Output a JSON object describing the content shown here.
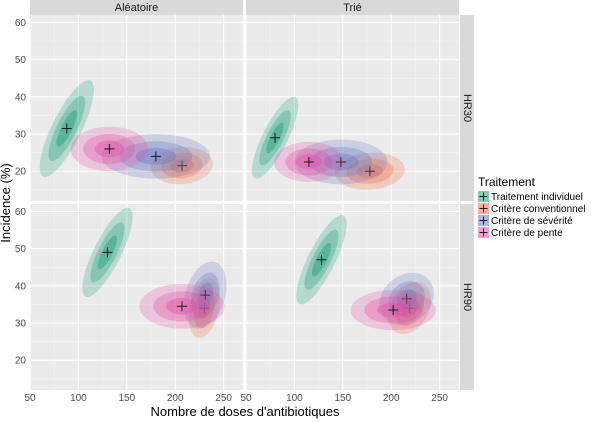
{
  "chart_data": {
    "type": "scatter",
    "subtype": "faceted 2D density with centroid markers",
    "xlabel": "Nombre de doses d'antibiotiques",
    "ylabel": "Incidence (%)",
    "xlim": [
      50,
      270
    ],
    "ylim": [
      12,
      62
    ],
    "x_ticks": [
      50,
      100,
      150,
      200,
      250
    ],
    "y_ticks": [
      20,
      30,
      40,
      50,
      60
    ],
    "grid": true,
    "facet_columns": [
      "Aléatoire",
      "Trié"
    ],
    "facet_rows": [
      "HR30",
      "HR90"
    ],
    "legend": {
      "title": "Traitement",
      "position": "right",
      "entries": [
        "Traitement individuel",
        "Critère conventionnel",
        "Critère de sévérité",
        "Critère de pente"
      ]
    },
    "series": [
      {
        "name": "Traitement individuel",
        "color": "#1b9e77",
        "points": [
          {
            "col": "Aléatoire",
            "row": "HR30",
            "x": 88,
            "y": 31.5,
            "sx": 14,
            "sy": 6.5,
            "rho": 0.8
          },
          {
            "col": "Trié",
            "row": "HR30",
            "x": 80,
            "y": 29,
            "sx": 12,
            "sy": 5.5,
            "rho": 0.8
          },
          {
            "col": "Aléatoire",
            "row": "HR90",
            "x": 130,
            "y": 49,
            "sx": 13,
            "sy": 6,
            "rho": 0.8
          },
          {
            "col": "Trié",
            "row": "HR90",
            "x": 128,
            "y": 47,
            "sx": 13,
            "sy": 6,
            "rho": 0.8
          }
        ]
      },
      {
        "name": "Critère conventionnel",
        "color": "#f46d43",
        "points": [
          {
            "col": "Aléatoire",
            "row": "HR30",
            "x": 207,
            "y": 21.5,
            "sx": 16,
            "sy": 2.5,
            "rho": 0.1
          },
          {
            "col": "Trié",
            "row": "HR30",
            "x": 178,
            "y": 20,
            "sx": 18,
            "sy": 2.5,
            "rho": 0.1
          },
          {
            "col": "Aléatoire",
            "row": "HR90",
            "x": 230,
            "y": 34,
            "sx": 8,
            "sy": 4,
            "rho": 0.3
          },
          {
            "col": "Trié",
            "row": "HR90",
            "x": 219,
            "y": 34,
            "sx": 11,
            "sy": 3.5,
            "rho": 0.3
          }
        ]
      },
      {
        "name": "Critère de sévérité",
        "color": "#6b79c4",
        "points": [
          {
            "col": "Aléatoire",
            "row": "HR30",
            "x": 180,
            "y": 24,
            "sx": 28,
            "sy": 3,
            "rho": 0
          },
          {
            "col": "Trié",
            "row": "HR30",
            "x": 148,
            "y": 22.5,
            "sx": 24,
            "sy": 3,
            "rho": 0
          },
          {
            "col": "Aléatoire",
            "row": "HR90",
            "x": 231,
            "y": 37.5,
            "sx": 11,
            "sy": 4.5,
            "rho": 0.3
          },
          {
            "col": "Trié",
            "row": "HR90",
            "x": 216,
            "y": 36.5,
            "sx": 14,
            "sy": 3.5,
            "rho": 0.2
          }
        ]
      },
      {
        "name": "Critère de pente",
        "color": "#e34fa6",
        "points": [
          {
            "col": "Aléatoire",
            "row": "HR30",
            "x": 132,
            "y": 26,
            "sx": 20,
            "sy": 3,
            "rho": 0
          },
          {
            "col": "Trié",
            "row": "HR30",
            "x": 115,
            "y": 22.5,
            "sx": 18,
            "sy": 2.7,
            "rho": 0
          },
          {
            "col": "Aléatoire",
            "row": "HR90",
            "x": 207,
            "y": 34.5,
            "sx": 22,
            "sy": 3,
            "rho": 0
          },
          {
            "col": "Trié",
            "row": "HR90",
            "x": 202,
            "y": 33.5,
            "sx": 22,
            "sy": 2.7,
            "rho": 0
          }
        ]
      }
    ]
  }
}
